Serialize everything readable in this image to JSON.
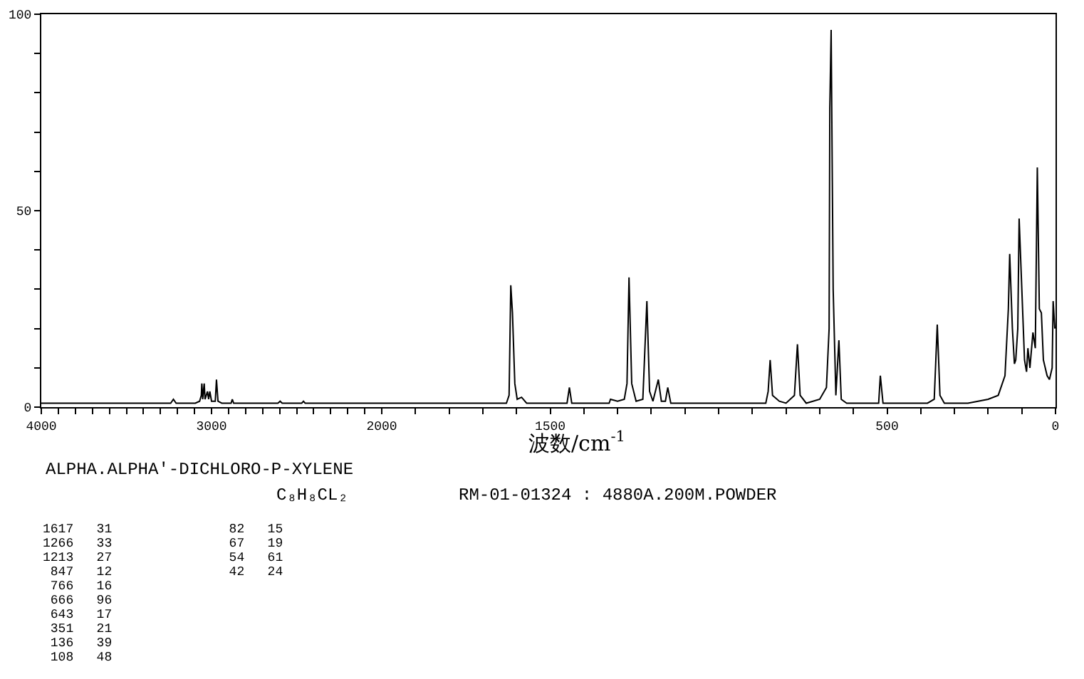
{
  "chart_data": [
    {
      "type": "line",
      "ylim": [
        0,
        100
      ],
      "xlim": [
        4000,
        2000
      ],
      "yticks": [
        0,
        {
          "value": 10,
          "label": null
        },
        {
          "value": 20,
          "label": null
        },
        {
          "value": 30,
          "label": null
        },
        {
          "value": 40,
          "label": null
        },
        50,
        {
          "value": 60,
          "label": null
        },
        {
          "value": 70,
          "label": null
        },
        {
          "value": 80,
          "label": null
        },
        {
          "value": 90,
          "label": null
        },
        100
      ],
      "xticks": [
        4000,
        {
          "value": 3900,
          "label": null
        },
        {
          "value": 3800,
          "label": null
        },
        {
          "value": 3700,
          "label": null
        },
        {
          "value": 3600,
          "label": null
        },
        {
          "value": 3500,
          "label": null
        },
        {
          "value": 3400,
          "label": null
        },
        {
          "value": 3300,
          "label": null
        },
        {
          "value": 3200,
          "label": null
        },
        {
          "value": 3100,
          "label": null
        },
        3000,
        {
          "value": 2900,
          "label": null
        },
        {
          "value": 2800,
          "label": null
        },
        {
          "value": 2700,
          "label": null
        },
        {
          "value": 2600,
          "label": null
        },
        {
          "value": 2500,
          "label": null
        },
        {
          "value": 2400,
          "label": null
        },
        {
          "value": 2300,
          "label": null
        },
        {
          "value": 2200,
          "label": null
        },
        {
          "value": 2100,
          "label": null
        },
        2000
      ],
      "series": [
        {
          "color": "#000000",
          "x": [
            4000,
            3240,
            3224,
            3208,
            3095,
            3070,
            3060,
            3057,
            3052,
            3043,
            3038,
            3024,
            3017,
            3010,
            3000,
            2978,
            2971,
            2962,
            2940,
            2885,
            2878,
            2870,
            2610,
            2597,
            2585,
            2470,
            2460,
            2450,
            2000
          ],
          "values": [
            1,
            1,
            2,
            1,
            1,
            1.5,
            3,
            6,
            2,
            6,
            2,
            4,
            2,
            4,
            1.5,
            1.5,
            7,
            1.5,
            1,
            1,
            2,
            1,
            1,
            1.5,
            1,
            1,
            1.5,
            1,
            1
          ]
        }
      ]
    },
    {
      "type": "line",
      "ylim": [
        0,
        100
      ],
      "xlim": [
        2000,
        0
      ],
      "tick_labels": "x",
      "xlabel": "波数/cm$^{-1}$",
      "xticks": [
        {
          "value": 1900,
          "label": null
        },
        {
          "value": 1800,
          "label": null
        },
        {
          "value": 1700,
          "label": null
        },
        {
          "value": 1600,
          "label": null
        },
        1500,
        {
          "value": 1400,
          "label": null
        },
        {
          "value": 1300,
          "label": null
        },
        {
          "value": 1200,
          "label": null
        },
        {
          "value": 1100,
          "label": null
        },
        {
          "value": 1000,
          "label": null
        },
        {
          "value": 900,
          "label": null
        },
        {
          "value": 800,
          "label": null
        },
        {
          "value": 700,
          "label": null
        },
        {
          "value": 600,
          "label": null
        },
        500,
        {
          "value": 400,
          "label": null
        },
        {
          "value": 300,
          "label": null
        },
        {
          "value": 200,
          "label": null
        },
        {
          "value": 100,
          "label": null
        },
        0
      ],
      "series": [
        {
          "color": "#000000",
          "x": [
            2000,
            1630,
            1622,
            1617,
            1612,
            1605,
            1598,
            1585,
            1570,
            1450,
            1443,
            1436,
            1325,
            1321,
            1300,
            1280,
            1272,
            1266,
            1258,
            1245,
            1225,
            1213,
            1205,
            1195,
            1179,
            1170,
            1158,
            1151,
            1142,
            900,
            860,
            853,
            847,
            840,
            820,
            800,
            775,
            766,
            758,
            740,
            700,
            680,
            672,
            670,
            666,
            660,
            652,
            643,
            636,
            620,
            525,
            520,
            512,
            380,
            360,
            351,
            343,
            330,
            260,
            230,
            200,
            170,
            150,
            140,
            136,
            128,
            122,
            118,
            112,
            108,
            100,
            92,
            86,
            82,
            76,
            67,
            60,
            54,
            48,
            42,
            36,
            25,
            18,
            10,
            7,
            2
          ],
          "values": [
            1,
            1,
            3,
            31,
            24,
            6,
            2,
            2.5,
            1,
            1,
            5,
            1,
            1,
            2,
            1.5,
            2,
            6,
            33,
            6,
            1.5,
            2,
            27,
            4,
            1.5,
            7,
            1.5,
            1.5,
            5,
            1,
            1,
            1,
            4,
            12,
            3,
            1.5,
            1,
            3,
            16,
            3,
            1,
            2,
            5,
            20,
            76,
            96,
            30,
            3,
            17,
            2,
            1,
            1,
            8,
            1,
            1,
            2,
            21,
            3,
            1,
            1,
            1.5,
            2,
            3,
            8,
            25,
            39,
            20,
            11,
            12,
            20,
            48,
            30,
            12,
            9,
            15,
            10,
            19,
            15,
            61,
            25,
            24,
            12,
            8,
            7,
            10,
            27,
            20
          ]
        }
      ],
      "annotations": [
        "ALPHA.ALPHA'-DICHLORO-P-XYLENE",
        "C₈H₈CL₂",
        "RM-01-01324 : 4880A.200M.POWDER",
        "1617   31",
        "1266   33",
        "1213   27",
        " 847   12",
        " 766   16",
        " 666   96",
        " 643   17",
        " 351   21",
        " 136   39",
        " 108   48",
        "  82   15",
        "  67   19",
        "  54   61",
        "  42   24"
      ]
    }
  ]
}
